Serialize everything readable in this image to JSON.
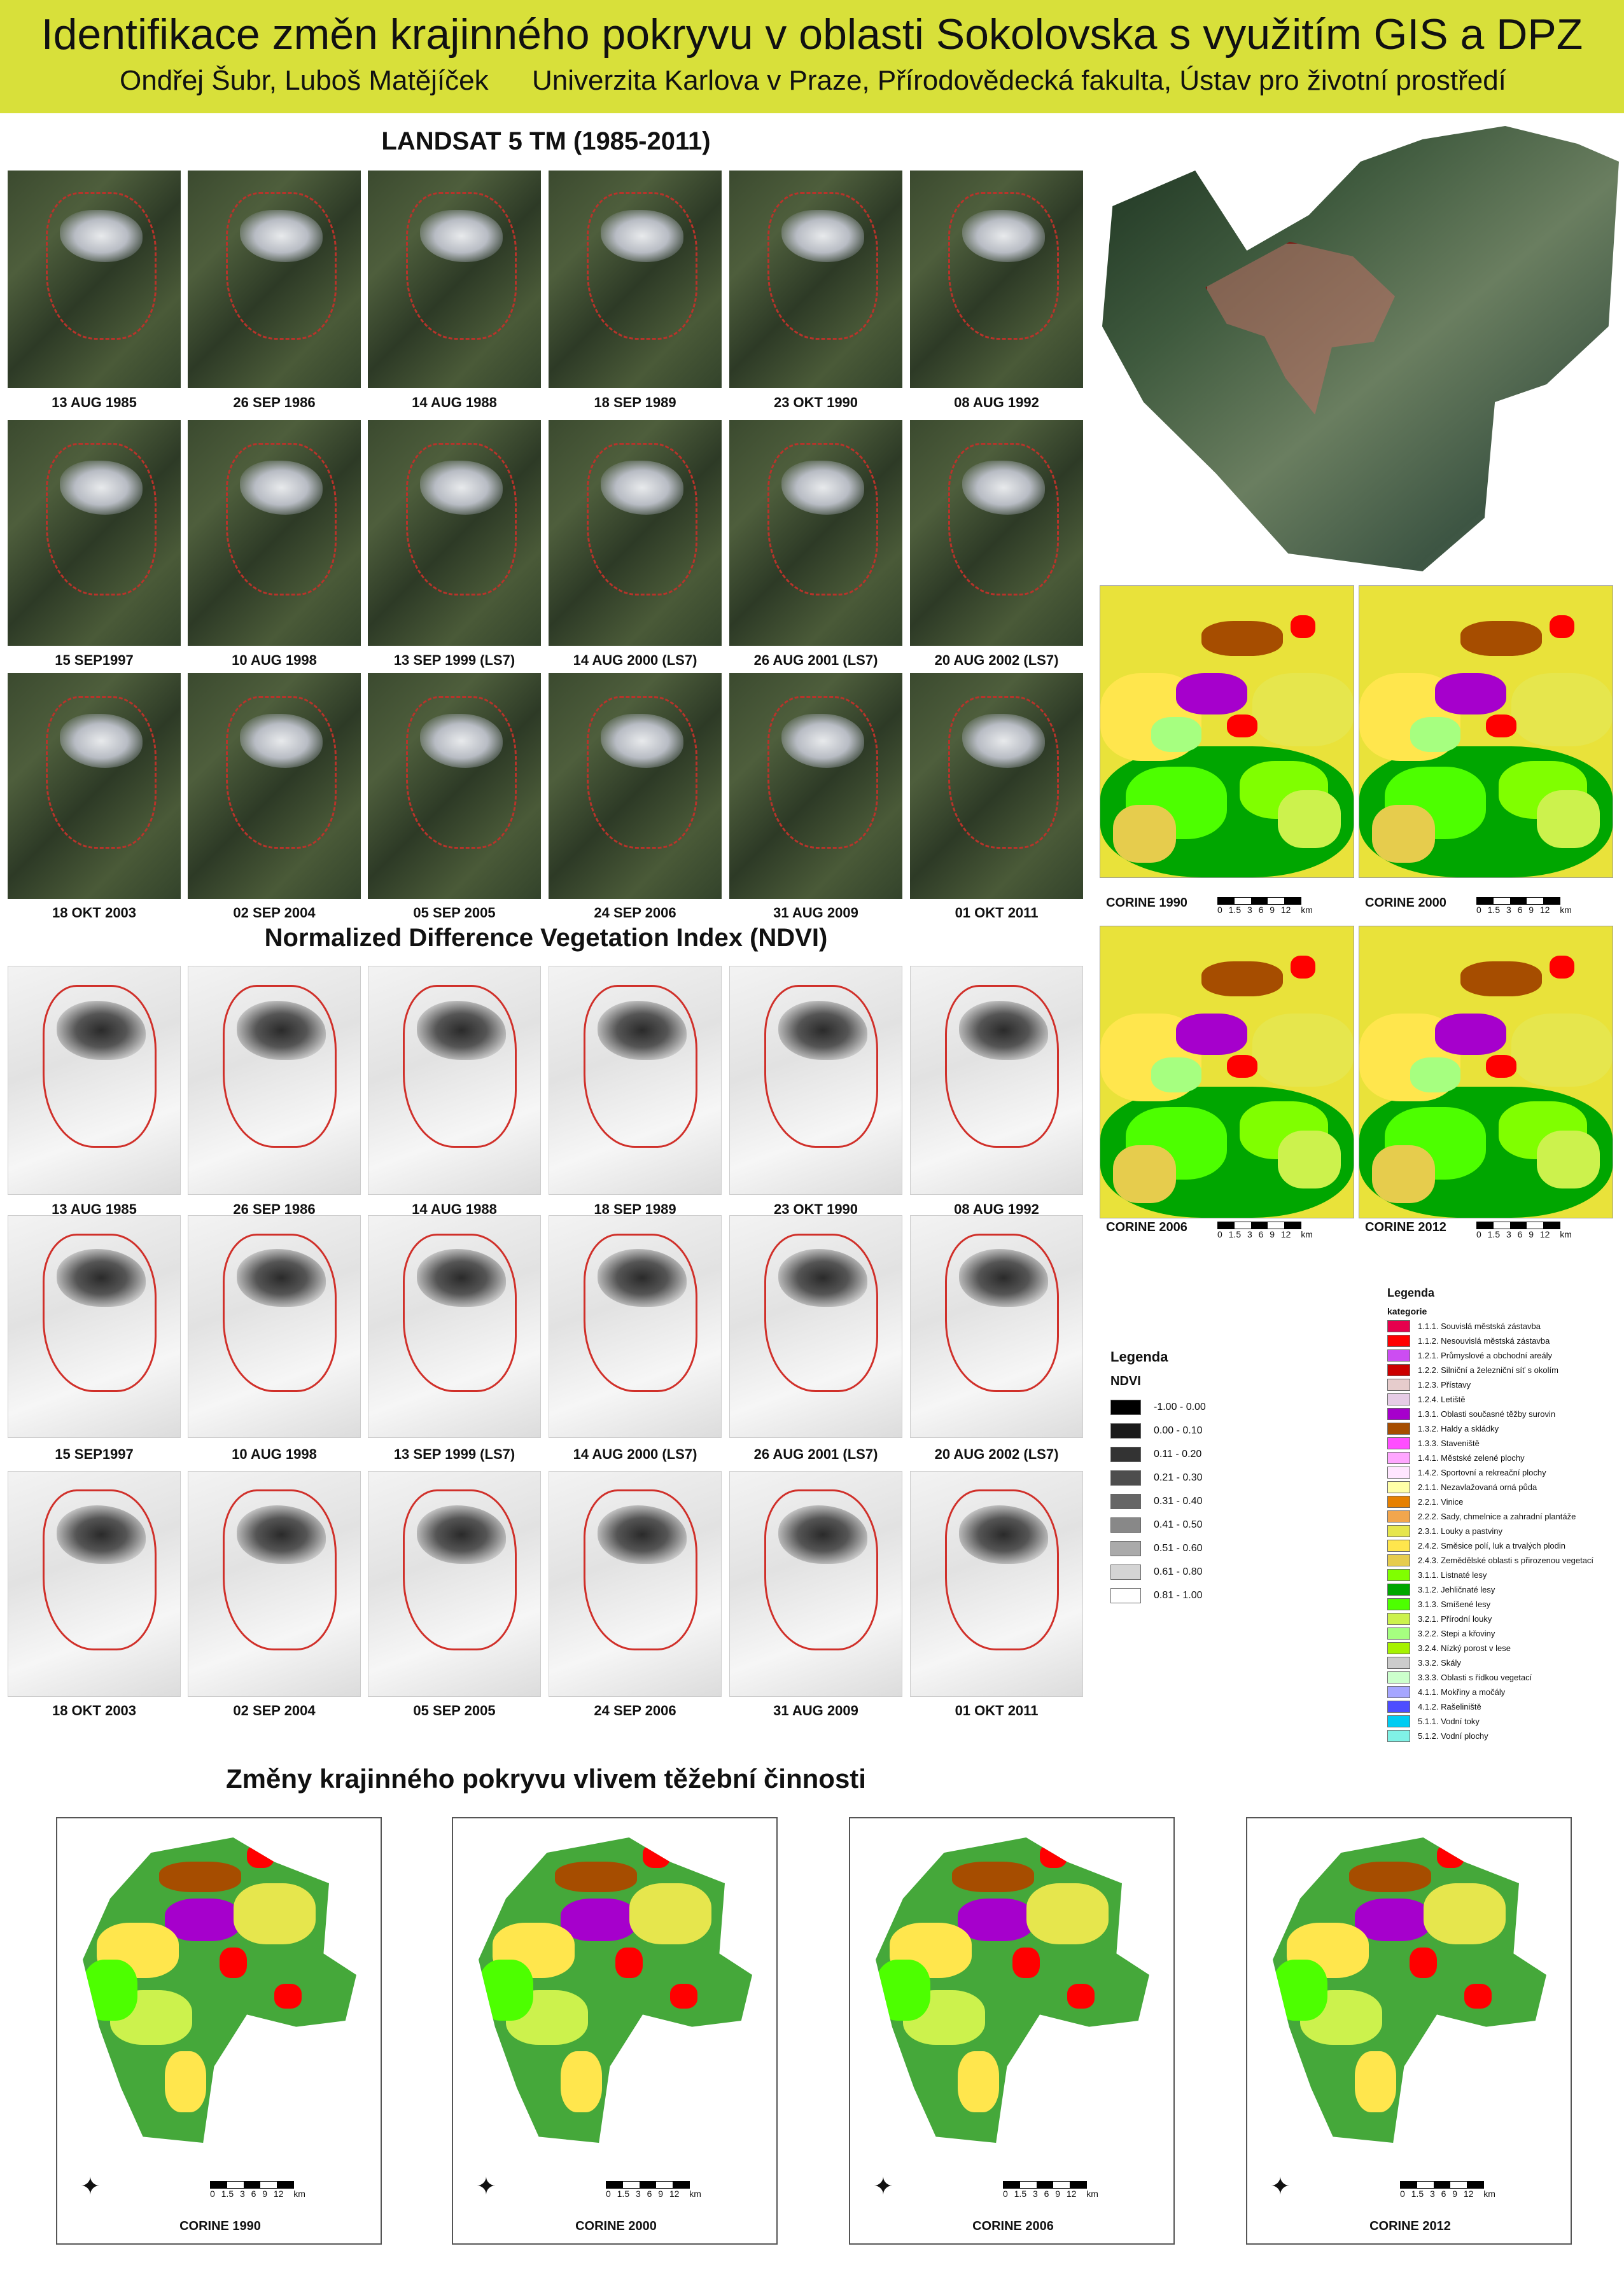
{
  "header": {
    "title": "Identifikace změn krajinného pokryvu v oblasti Sokolovska s využitím GIS a DPZ",
    "authors": "Ondřej Šubr, Luboš Matějíček",
    "institution": "Univerzita Karlova v Praze, Přírodovědecká fakulta, Ústav pro životní prostředí"
  },
  "landsat": {
    "title": "LANDSAT 5 TM (1985-2011)",
    "dates": [
      "13 AUG 1985",
      "26 SEP 1986",
      "14 AUG 1988",
      "18 SEP 1989",
      "23 OKT 1990",
      "08 AUG 1992",
      "15 SEP1997",
      "10 AUG 1998",
      "13 SEP 1999 (LS7)",
      "14 AUG 2000 (LS7)",
      "26 AUG 2001 (LS7)",
      "20 AUG 2002 (LS7)",
      "18 OKT 2003",
      "02 SEP 2004",
      "05 SEP 2005",
      "24 SEP 2006",
      "31 AUG 2009",
      "01 OKT 2011"
    ]
  },
  "ndvi": {
    "title": "Normalized Difference Vegetation Index (NDVI)",
    "dates": [
      "13 AUG 1985",
      "26 SEP 1986",
      "14 AUG 1988",
      "18 SEP 1989",
      "23 OKT 1990",
      "08 AUG 1992",
      "15 SEP1997",
      "10 AUG 1998",
      "13 SEP 1999 (LS7)",
      "14 AUG 2000 (LS7)",
      "26 AUG 2001 (LS7)",
      "20 AUG 2002 (LS7)",
      "18 OKT 2003",
      "02 SEP 2004",
      "05 SEP 2005",
      "24 SEP 2006",
      "31 AUG 2009",
      "01 OKT 2011"
    ]
  },
  "ndvi_legend": {
    "title": "Legenda",
    "subtitle": "NDVI",
    "items": [
      {
        "label": "-1.00 - 0.00",
        "color": "#000000"
      },
      {
        "label": "0.00 - 0.10",
        "color": "#1a1a1a"
      },
      {
        "label": "0.11 - 0.20",
        "color": "#333333"
      },
      {
        "label": "0.21 - 0.30",
        "color": "#4d4d4d"
      },
      {
        "label": "0.31 - 0.40",
        "color": "#666666"
      },
      {
        "label": "0.41 - 0.50",
        "color": "#888888"
      },
      {
        "label": "0.51 - 0.60",
        "color": "#aaaaaa"
      },
      {
        "label": "0.61 - 0.80",
        "color": "#d4d4d4"
      },
      {
        "label": "0.81 - 1.00",
        "color": "#ffffff"
      }
    ]
  },
  "corine_maps": [
    "CORINE 1990",
    "CORINE 2000",
    "CORINE 2006",
    "CORINE 2012"
  ],
  "scale": {
    "numbers": [
      "0",
      "1.5",
      "3",
      "6",
      "9",
      "12"
    ],
    "unit": "km"
  },
  "corine_legend": {
    "title": "Legenda",
    "subtitle": "kategorie",
    "items": [
      {
        "label": "1.1.1. Souvislá městská zástavba",
        "color": "#e6004d"
      },
      {
        "label": "1.1.2. Nesouvislá městská zástavba",
        "color": "#ff0000"
      },
      {
        "label": "1.2.1. Průmyslové a obchodní areály",
        "color": "#cc4df2"
      },
      {
        "label": "1.2.2. Silniční a železniční síť s okolím",
        "color": "#cc0000"
      },
      {
        "label": "1.2.3. Přístavy",
        "color": "#e6cccc"
      },
      {
        "label": "1.2.4. Letiště",
        "color": "#e6cce6"
      },
      {
        "label": "1.3.1. Oblasti současné těžby surovin",
        "color": "#a600cc"
      },
      {
        "label": "1.3.2. Haldy a skládky",
        "color": "#a64d00"
      },
      {
        "label": "1.3.3. Staveniště",
        "color": "#ff4dff"
      },
      {
        "label": "1.4.1. Městské zelené plochy",
        "color": "#ffa6ff"
      },
      {
        "label": "1.4.2. Sportovní a rekreační plochy",
        "color": "#ffe6ff"
      },
      {
        "label": "2.1.1. Nezavlažovaná orná půda",
        "color": "#ffffa8"
      },
      {
        "label": "2.2.1. Vinice",
        "color": "#e68000"
      },
      {
        "label": "2.2.2. Sady, chmelnice a zahradní plantáže",
        "color": "#f2a64d"
      },
      {
        "label": "2.3.1. Louky a pastviny",
        "color": "#e6e64d"
      },
      {
        "label": "2.4.2. Směsice polí, luk a trvalých plodin",
        "color": "#ffe64d"
      },
      {
        "label": "2.4.3. Zemědělské oblasti s přirozenou vegetací",
        "color": "#e6cc4d"
      },
      {
        "label": "3.1.1. Listnaté lesy",
        "color": "#80ff00"
      },
      {
        "label": "3.1.2. Jehličnaté lesy",
        "color": "#00a600"
      },
      {
        "label": "3.1.3. Smíšené lesy",
        "color": "#4dff00"
      },
      {
        "label": "3.2.1. Přírodní louky",
        "color": "#ccf24d"
      },
      {
        "label": "3.2.2. Stepi a křoviny",
        "color": "#a6ff80"
      },
      {
        "label": "3.2.4. Nízký porost v lese",
        "color": "#a6f200"
      },
      {
        "label": "3.3.2. Skály",
        "color": "#cccccc"
      },
      {
        "label": "3.3.3. Oblasti s řídkou vegetací",
        "color": "#ccffcc"
      },
      {
        "label": "4.1.1. Mokřiny a močály",
        "color": "#a6a6ff"
      },
      {
        "label": "4.1.2. Rašeliniště",
        "color": "#4d4dff"
      },
      {
        "label": "5.1.1. Vodní toky",
        "color": "#00ccf2"
      },
      {
        "label": "5.1.2. Vodní plochy",
        "color": "#80f2e6"
      }
    ]
  },
  "changes": {
    "title": "Změny krajinného pokryvu vlivem těžební činnosti",
    "panels": [
      "CORINE 1990",
      "CORINE 2000",
      "CORINE 2006",
      "CORINE 2012"
    ]
  }
}
